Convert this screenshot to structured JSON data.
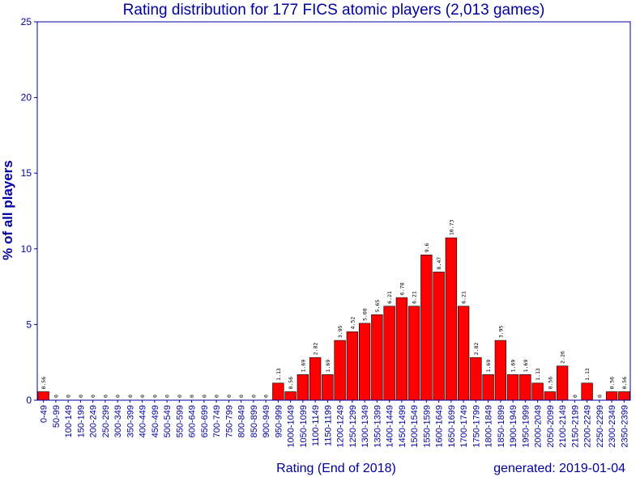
{
  "chart_data": {
    "type": "bar",
    "title": "Rating distribution for 177 FICS atomic players (2,013 games)",
    "xlabel": "Rating (End of 2018)",
    "ylabel": "% of all players",
    "footer": "generated: 2019-01-04",
    "ylim": [
      0,
      25
    ],
    "yticks": [
      0,
      5,
      10,
      15,
      20,
      25
    ],
    "bar_color": "#ff0000",
    "axis_color": "#0000a0",
    "grid": false,
    "legend": "none",
    "categories": [
      "0-49",
      "50-99",
      "100-149",
      "150-199",
      "200-249",
      "250-299",
      "300-349",
      "350-399",
      "400-449",
      "450-499",
      "500-549",
      "550-599",
      "600-649",
      "650-699",
      "700-749",
      "750-799",
      "800-849",
      "850-899",
      "900-949",
      "950-999",
      "1000-1049",
      "1050-1099",
      "1100-1149",
      "1150-1199",
      "1200-1249",
      "1250-1299",
      "1300-1349",
      "1350-1399",
      "1400-1449",
      "1450-1499",
      "1500-1549",
      "1550-1599",
      "1600-1649",
      "1650-1699",
      "1700-1749",
      "1750-1799",
      "1800-1849",
      "1850-1899",
      "1900-1949",
      "1950-1999",
      "2000-2049",
      "2050-2099",
      "2100-2149",
      "2150-2199",
      "2200-2249",
      "2250-2299",
      "2300-2349",
      "2350-2399"
    ],
    "values": [
      0.56,
      0,
      0,
      0,
      0,
      0,
      0,
      0,
      0,
      0,
      0,
      0,
      0,
      0,
      0,
      0,
      0,
      0,
      0,
      1.13,
      0.56,
      1.69,
      2.82,
      1.69,
      3.95,
      4.52,
      5.08,
      5.65,
      6.21,
      6.78,
      6.21,
      9.6,
      8.47,
      10.73,
      6.21,
      2.82,
      1.69,
      3.95,
      1.69,
      1.69,
      1.13,
      0.56,
      2.26,
      0,
      1.13,
      0,
      0.56,
      0.56
    ],
    "data_labels": [
      "0.56",
      "0",
      "0",
      "0",
      "0",
      "0",
      "0",
      "0",
      "0",
      "0",
      "0",
      "0",
      "0",
      "0",
      "0",
      "0",
      "0",
      "0",
      "0",
      "1.13",
      "0.56",
      "1.69",
      "2.82",
      "1.69",
      "3.95",
      "4.52",
      "5.08",
      "5.65",
      "6.21",
      "6.78",
      "6.21",
      "9.6",
      "8.47",
      "10.73",
      "6.21",
      "2.82",
      "1.69",
      "3.95",
      "1.69",
      "1.69",
      "1.13",
      "0.56",
      "2.26",
      "0",
      "1.13",
      "0",
      "0.56",
      "0.56"
    ]
  }
}
